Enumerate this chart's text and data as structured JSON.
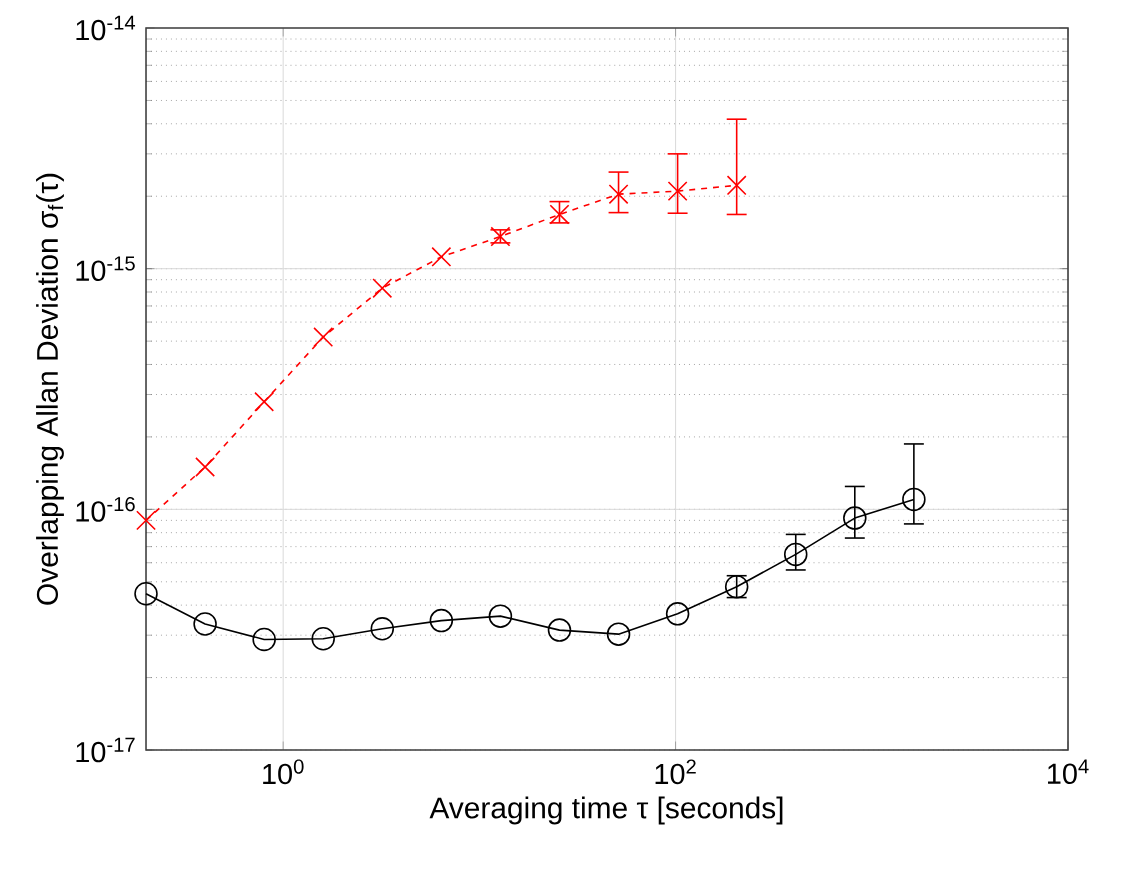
{
  "chart_data": {
    "type": "line",
    "xlabel": "Averaging time τ [seconds]",
    "ylabel": "Overlapping Allan Deviation σ$_{f}$(τ)",
    "log": "xy",
    "grid": true,
    "xlim": [
      0.2,
      10000
    ],
    "ylim": [
      1e-17,
      1e-14
    ],
    "xticks": [
      {
        "value": 1,
        "label": "10$^{0}$"
      },
      {
        "value": 100,
        "label": "10$^{2}$"
      },
      {
        "value": 10000,
        "label": "10$^{4}$"
      }
    ],
    "yticks": [
      {
        "value": 1e-17,
        "label": "10$^{-17}$"
      },
      {
        "value": 1e-16,
        "label": "10$^{-16}$"
      },
      {
        "value": 1e-15,
        "label": "10$^{-15}$"
      },
      {
        "value": 1e-14,
        "label": "10$^{-14}$"
      }
    ],
    "series": [
      {
        "color": "#ff0000",
        "marker": "cross",
        "line_style": "dashed",
        "x": [
          0.2,
          0.4,
          0.8,
          1.6,
          3.2,
          6.4,
          12.8,
          25.6,
          51.2,
          102.4,
          204.8
        ],
        "values": [
          9e-17,
          1.5e-16,
          2.8e-16,
          5.2e-16,
          8.3e-16,
          1.12e-15,
          1.36e-15,
          1.68e-15,
          2.04e-15,
          2.1e-15,
          2.22e-15
        ],
        "errors": [
          null,
          null,
          null,
          null,
          null,
          null,
          [
            1.28e-15,
            1.45e-15
          ],
          [
            1.55e-15,
            1.9e-15
          ],
          [
            1.71e-15,
            2.52e-15
          ],
          [
            1.7e-15,
            3e-15
          ],
          [
            1.68e-15,
            4.18e-15
          ]
        ]
      },
      {
        "color": "#000000",
        "marker": "circle",
        "line_style": "solid",
        "x": [
          0.2,
          0.4,
          0.8,
          1.6,
          3.2,
          6.4,
          12.8,
          25.6,
          51.2,
          102.4,
          204.8,
          409.6,
          819.2,
          1638.4
        ],
        "values": [
          4.46e-17,
          3.34e-17,
          2.88e-17,
          2.9e-17,
          3.19e-17,
          3.45e-17,
          3.6e-17,
          3.15e-17,
          3.03e-17,
          3.68e-17,
          4.77e-17,
          6.5e-17,
          9.2e-17,
          1.1e-16
        ],
        "errors": [
          null,
          null,
          null,
          null,
          null,
          null,
          null,
          null,
          null,
          null,
          [
            4.3e-17,
            5.3e-17
          ],
          [
            5.6e-17,
            7.87e-17
          ],
          [
            7.6e-17,
            1.245e-16
          ],
          [
            8.7e-17,
            1.87e-16
          ]
        ]
      }
    ]
  }
}
